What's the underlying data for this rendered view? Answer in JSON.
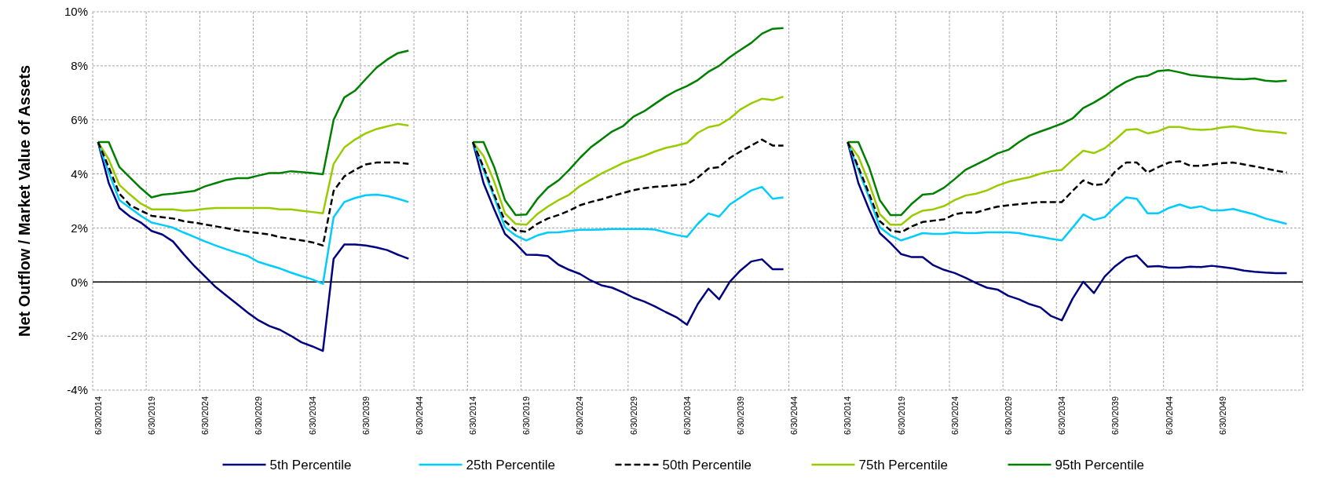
{
  "chart_data": {
    "type": "line",
    "ylabel": "Net Outflow / Market Value of Assets",
    "categories": [
      "6/30/2014",
      null,
      null,
      null,
      null,
      "6/30/2019",
      null,
      null,
      null,
      null,
      "6/30/2024",
      null,
      null,
      null,
      null,
      "6/30/2029",
      null,
      null,
      null,
      null,
      "6/30/2034",
      null,
      null,
      null,
      null,
      "6/30/2039",
      null,
      null,
      null,
      null,
      "6/30/2044",
      null,
      null,
      null,
      null,
      "6/30/2014",
      null,
      null,
      null,
      null,
      "6/30/2019",
      null,
      null,
      null,
      null,
      "6/30/2024",
      null,
      null,
      null,
      null,
      "6/30/2029",
      null,
      null,
      null,
      null,
      "6/30/2034",
      null,
      null,
      null,
      null,
      "6/30/2039",
      null,
      null,
      null,
      null,
      "6/30/2044",
      null,
      null,
      null,
      null,
      "6/30/2014",
      null,
      null,
      null,
      null,
      "6/30/2019",
      null,
      null,
      null,
      null,
      "6/30/2024",
      null,
      null,
      null,
      null,
      "6/30/2029",
      null,
      null,
      null,
      null,
      "6/30/2034",
      null,
      null,
      null,
      null,
      "6/30/2039",
      null,
      null,
      null,
      null,
      "6/30/2044",
      null,
      null,
      null,
      null,
      "6/30/2049",
      null,
      null,
      null,
      null,
      null,
      null,
      null
    ],
    "series": [
      {
        "name": "5th Percentile",
        "color": "#000080",
        "values": [
          5.18,
          3.66,
          2.74,
          2.42,
          2.2,
          1.89,
          1.76,
          1.5,
          1.03,
          0.59,
          0.2,
          -0.19,
          -0.51,
          -0.82,
          -1.14,
          -1.42,
          -1.63,
          -1.77,
          -1.99,
          -2.23,
          -2.38,
          -2.55,
          0.86,
          1.39,
          1.39,
          1.35,
          1.28,
          1.18,
          1.01,
          0.86,
          null,
          null,
          null,
          null,
          null,
          5.18,
          3.66,
          2.69,
          1.78,
          1.42,
          1.01,
          1.0,
          0.96,
          0.64,
          0.45,
          0.3,
          0.06,
          -0.12,
          -0.21,
          -0.38,
          -0.58,
          -0.72,
          -0.9,
          -1.11,
          -1.3,
          -1.58,
          -0.82,
          -0.25,
          -0.64,
          0.01,
          0.43,
          0.76,
          0.84,
          0.47,
          0.47,
          null,
          null,
          null,
          null,
          null,
          5.18,
          3.66,
          2.69,
          1.81,
          1.44,
          1.03,
          0.92,
          0.92,
          0.62,
          0.45,
          0.33,
          0.16,
          -0.04,
          -0.21,
          -0.28,
          -0.51,
          -0.64,
          -0.82,
          -0.94,
          -1.26,
          -1.42,
          -0.62,
          0.01,
          -0.41,
          0.2,
          0.59,
          0.89,
          0.98,
          0.57,
          0.59,
          0.53,
          0.53,
          0.57,
          0.55,
          0.6,
          0.55,
          0.5,
          0.42,
          0.38,
          0.35,
          0.33,
          0.33,
          null
        ]
      },
      {
        "name": "25th Percentile",
        "color": "#00ccff",
        "values": [
          5.18,
          4.05,
          3.03,
          2.74,
          2.45,
          2.2,
          2.11,
          2.01,
          1.83,
          1.67,
          1.5,
          1.35,
          1.21,
          1.08,
          0.96,
          0.74,
          0.62,
          0.5,
          0.35,
          0.22,
          0.1,
          -0.07,
          2.4,
          2.96,
          3.11,
          3.21,
          3.23,
          3.18,
          3.08,
          2.96,
          null,
          null,
          null,
          null,
          null,
          5.18,
          4.15,
          3.13,
          2.03,
          1.72,
          1.54,
          1.72,
          1.83,
          1.84,
          1.89,
          1.93,
          1.93,
          1.94,
          1.96,
          1.96,
          1.96,
          1.96,
          1.94,
          1.84,
          1.74,
          1.67,
          2.15,
          2.54,
          2.42,
          2.87,
          3.13,
          3.39,
          3.52,
          3.08,
          3.13,
          null,
          null,
          null,
          null,
          null,
          5.18,
          4.15,
          3.13,
          2.03,
          1.72,
          1.54,
          1.67,
          1.81,
          1.78,
          1.78,
          1.84,
          1.81,
          1.81,
          1.84,
          1.84,
          1.84,
          1.81,
          1.73,
          1.67,
          1.6,
          1.54,
          2.01,
          2.5,
          2.3,
          2.4,
          2.79,
          3.13,
          3.08,
          2.54,
          2.54,
          2.74,
          2.87,
          2.74,
          2.8,
          2.65,
          2.65,
          2.7,
          2.6,
          2.5,
          2.35,
          2.25,
          2.15,
          null
        ]
      },
      {
        "name": "50th Percentile",
        "color": "#000000",
        "line_style": "dashed",
        "values": [
          5.18,
          4.25,
          3.27,
          2.84,
          2.64,
          2.45,
          2.4,
          2.35,
          2.25,
          2.2,
          2.13,
          2.06,
          1.99,
          1.91,
          1.86,
          1.81,
          1.76,
          1.66,
          1.6,
          1.54,
          1.47,
          1.35,
          3.37,
          3.91,
          4.15,
          4.35,
          4.42,
          4.42,
          4.42,
          4.37,
          null,
          null,
          null,
          null,
          null,
          5.18,
          4.25,
          3.23,
          2.25,
          1.91,
          1.86,
          2.15,
          2.35,
          2.48,
          2.64,
          2.84,
          2.96,
          3.06,
          3.18,
          3.29,
          3.4,
          3.47,
          3.52,
          3.55,
          3.59,
          3.62,
          3.86,
          4.2,
          4.25,
          4.59,
          4.83,
          5.05,
          5.27,
          5.05,
          5.05,
          null,
          null,
          null,
          null,
          null,
          5.18,
          4.25,
          3.27,
          2.25,
          1.91,
          1.84,
          2.06,
          2.22,
          2.27,
          2.32,
          2.51,
          2.57,
          2.57,
          2.69,
          2.79,
          2.84,
          2.88,
          2.92,
          2.96,
          2.96,
          2.96,
          3.37,
          3.76,
          3.59,
          3.62,
          4.1,
          4.42,
          4.42,
          4.05,
          4.25,
          4.42,
          4.47,
          4.3,
          4.3,
          4.35,
          4.4,
          4.42,
          4.35,
          4.28,
          4.2,
          4.12,
          4.05,
          null
        ]
      },
      {
        "name": "75th Percentile",
        "color": "#99cc00",
        "values": [
          5.18,
          4.54,
          3.59,
          3.23,
          2.9,
          2.69,
          2.69,
          2.69,
          2.64,
          2.66,
          2.71,
          2.74,
          2.74,
          2.74,
          2.74,
          2.74,
          2.74,
          2.69,
          2.69,
          2.64,
          2.59,
          2.54,
          4.37,
          4.98,
          5.27,
          5.5,
          5.66,
          5.76,
          5.85,
          5.79,
          null,
          null,
          null,
          null,
          null,
          5.18,
          4.66,
          3.71,
          2.54,
          2.15,
          2.12,
          2.51,
          2.79,
          3.03,
          3.23,
          3.55,
          3.78,
          4.01,
          4.2,
          4.4,
          4.54,
          4.67,
          4.83,
          4.96,
          5.05,
          5.15,
          5.52,
          5.73,
          5.81,
          6.05,
          6.39,
          6.61,
          6.78,
          6.73,
          6.86,
          null,
          null,
          null,
          null,
          null,
          5.18,
          4.64,
          3.66,
          2.51,
          2.12,
          2.12,
          2.45,
          2.64,
          2.69,
          2.81,
          3.03,
          3.2,
          3.27,
          3.39,
          3.57,
          3.71,
          3.8,
          3.88,
          4.01,
          4.1,
          4.15,
          4.52,
          4.86,
          4.77,
          4.95,
          5.27,
          5.63,
          5.66,
          5.5,
          5.58,
          5.74,
          5.74,
          5.66,
          5.63,
          5.65,
          5.72,
          5.76,
          5.7,
          5.62,
          5.58,
          5.55,
          5.5,
          null
        ]
      },
      {
        "name": "95th Percentile",
        "color": "#008000",
        "values": [
          5.18,
          5.18,
          4.25,
          3.86,
          3.47,
          3.13,
          3.23,
          3.27,
          3.32,
          3.37,
          3.54,
          3.66,
          3.78,
          3.84,
          3.84,
          3.94,
          4.03,
          4.03,
          4.1,
          4.07,
          4.03,
          3.99,
          6.0,
          6.83,
          7.08,
          7.51,
          7.93,
          8.23,
          8.47,
          8.56,
          null,
          null,
          null,
          null,
          null,
          5.18,
          5.18,
          4.25,
          3.03,
          2.48,
          2.5,
          3.06,
          3.49,
          3.76,
          4.15,
          4.59,
          4.98,
          5.27,
          5.57,
          5.76,
          6.12,
          6.32,
          6.59,
          6.86,
          7.08,
          7.25,
          7.47,
          7.78,
          8.0,
          8.32,
          8.59,
          8.85,
          9.19,
          9.37,
          9.4,
          null,
          null,
          null,
          null,
          null,
          5.18,
          5.18,
          4.25,
          3.03,
          2.48,
          2.48,
          2.9,
          3.23,
          3.27,
          3.49,
          3.81,
          4.15,
          4.35,
          4.54,
          4.76,
          4.89,
          5.18,
          5.42,
          5.57,
          5.71,
          5.86,
          6.05,
          6.44,
          6.64,
          6.88,
          7.17,
          7.41,
          7.58,
          7.63,
          7.81,
          7.84,
          7.76,
          7.66,
          7.62,
          7.58,
          7.55,
          7.52,
          7.5,
          7.53,
          7.45,
          7.42,
          7.45,
          null
        ]
      }
    ],
    "ylim": [
      -4,
      10
    ],
    "yticks": [
      {
        "value": -4,
        "label": "-4%"
      },
      {
        "value": -2,
        "label": "-2%"
      },
      {
        "value": 0,
        "label": "0%"
      },
      {
        "value": 2,
        "label": "2%"
      },
      {
        "value": 4,
        "label": "4%"
      },
      {
        "value": 6,
        "label": "6%"
      },
      {
        "value": 8,
        "label": "8%"
      },
      {
        "value": 10,
        "label": "10%"
      }
    ],
    "grid": true,
    "legend": "bottom"
  }
}
